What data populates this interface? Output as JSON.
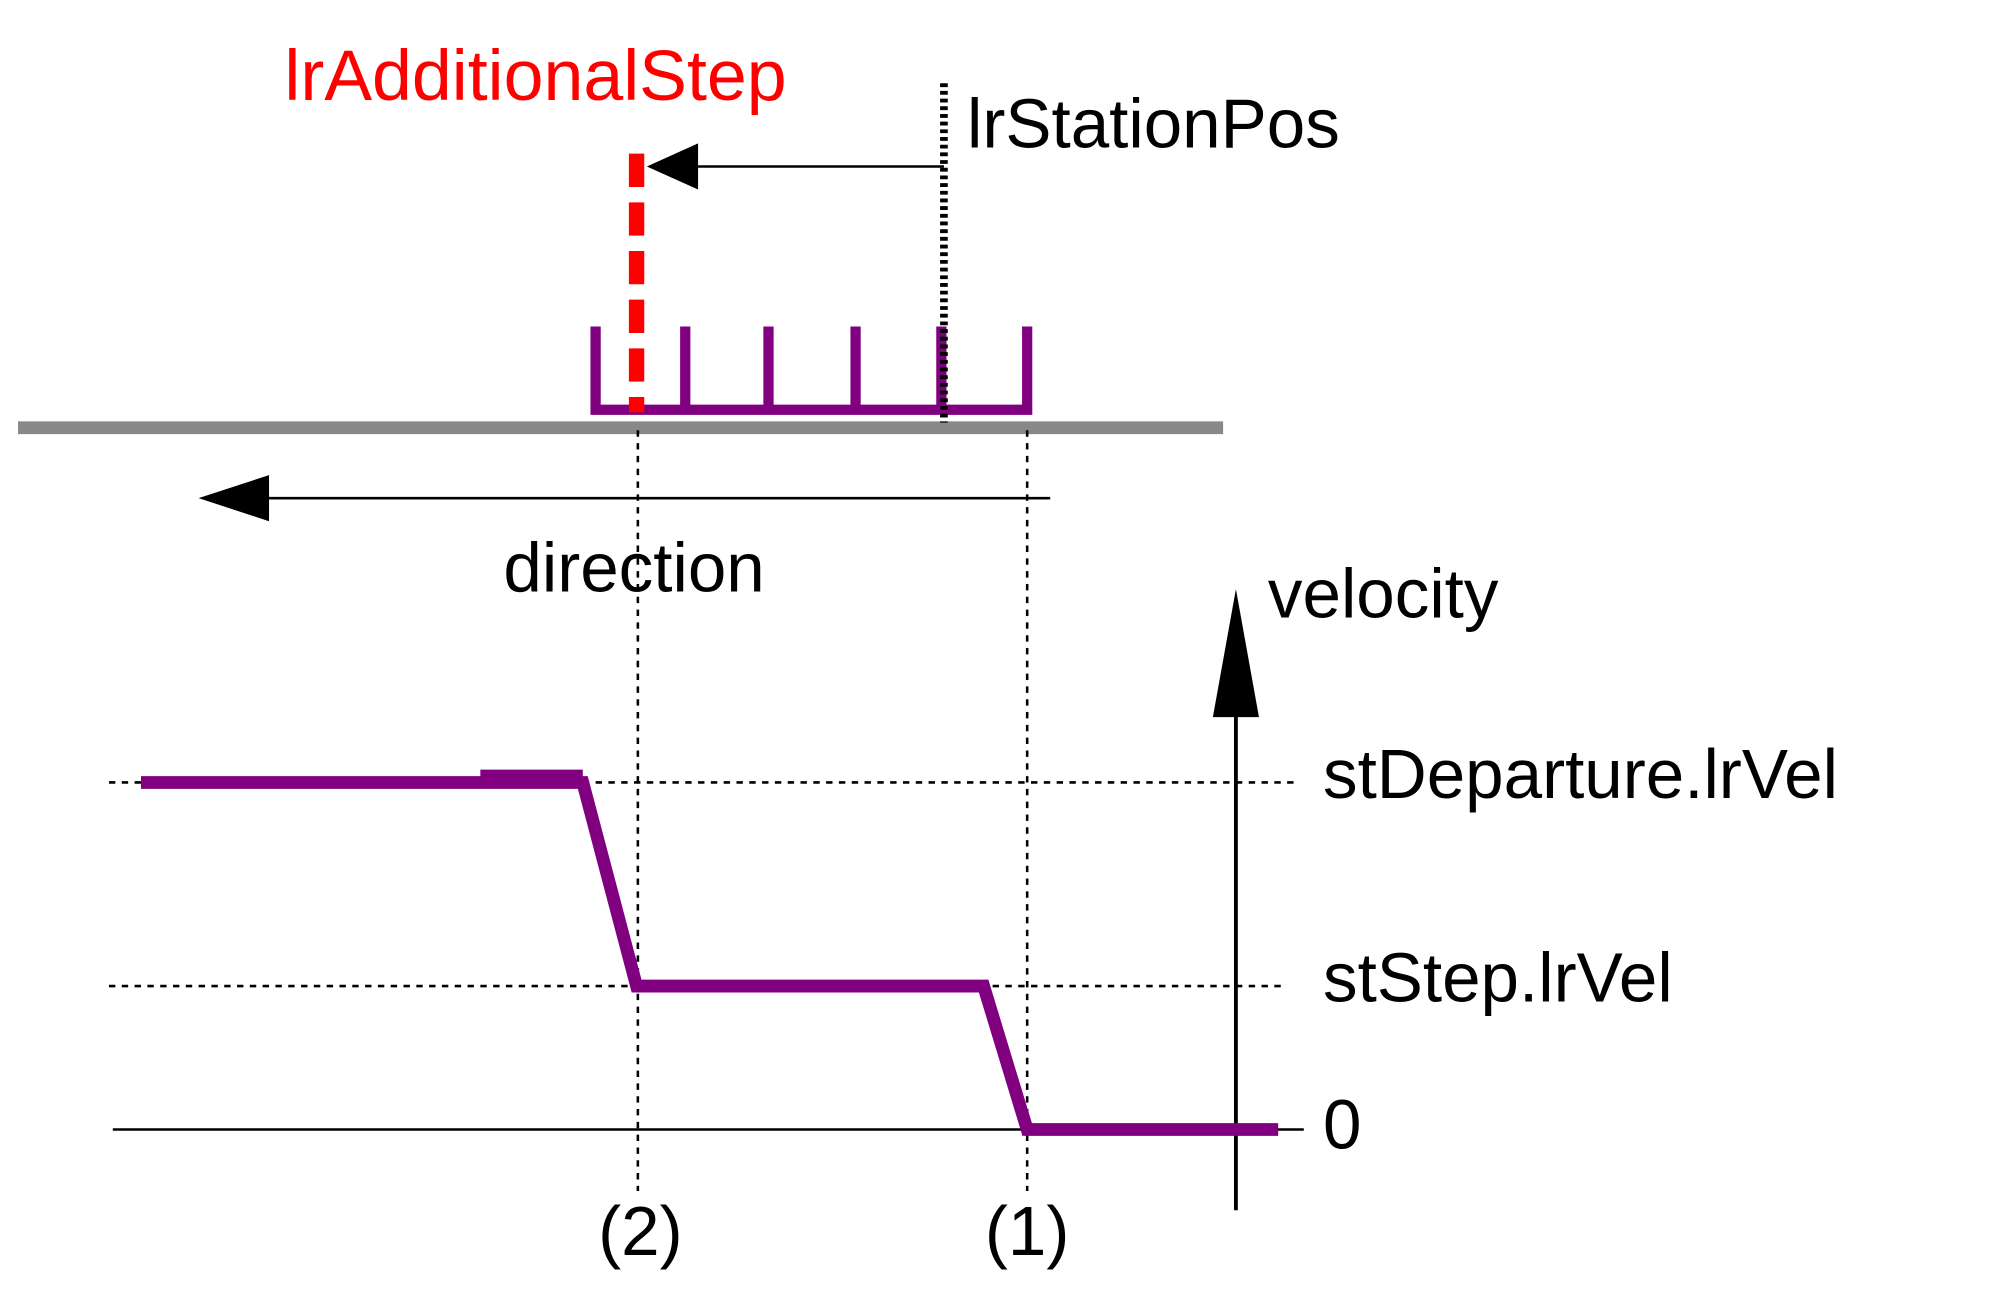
{
  "top": {
    "additional_step": "lrAdditionalStep",
    "station_pos": "lrStationPos",
    "direction": "direction"
  },
  "velocity_axis": {
    "title": "velocity",
    "levels": [
      "stDeparture.lrVel",
      "stStep.lrVel",
      "0"
    ]
  },
  "markers": [
    "(2)",
    "(1)"
  ]
}
